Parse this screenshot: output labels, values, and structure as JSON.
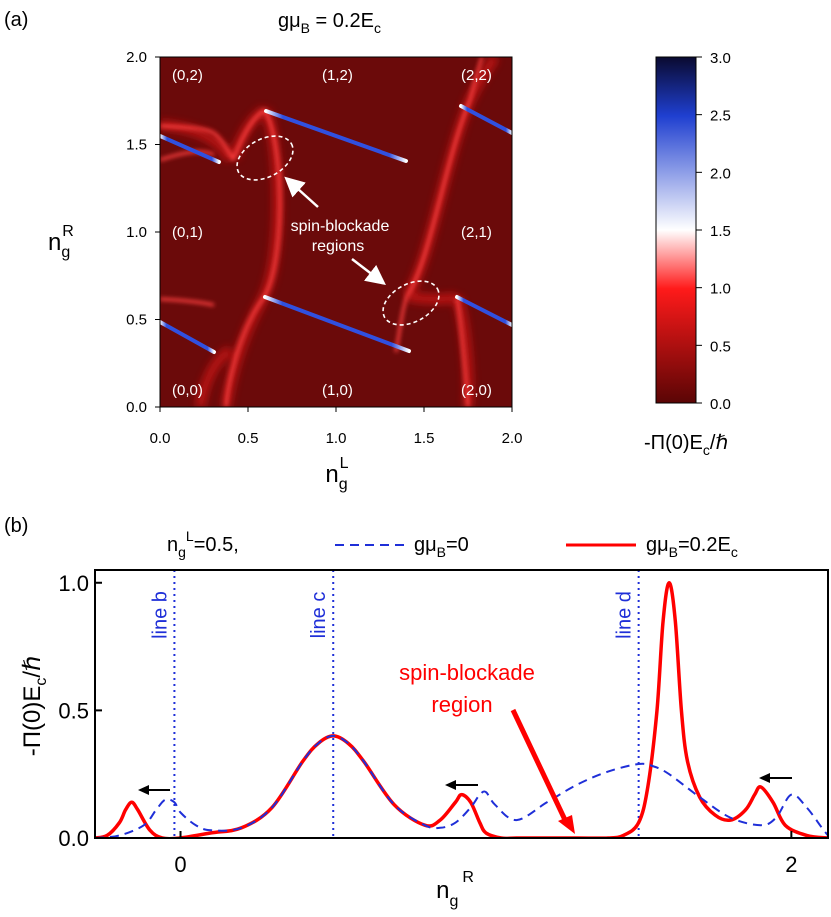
{
  "panel_a": {
    "label": "(a)",
    "title_parts": [
      "gμ",
      "B",
      " = 0.2E",
      "c"
    ],
    "xlabel_main": "n",
    "xlabel_sub": "g",
    "xlabel_sup": "L",
    "ylabel_main": "n",
    "ylabel_sub": "g",
    "ylabel_sup": "R",
    "region_labels": [
      "(0,2)",
      "(1,2)",
      "(2,2)",
      "(0,1)",
      "(2,1)",
      "(0,0)",
      "(1,0)",
      "(2,0)"
    ],
    "annotation_line1": "spin-blockade",
    "annotation_line2": "regions",
    "colorbar_label_parts": [
      "-Π(0)E",
      "c",
      "/ℏ"
    ],
    "colors": {
      "background": "#6b0a0a",
      "ridge": "#ff3030",
      "peak_blue": "#1a2a9a",
      "peak_white": "#ffffff"
    }
  },
  "panel_b": {
    "label": "(b)",
    "legend_cond_parts": [
      "n",
      "g",
      "L",
      "=0.5,"
    ],
    "legend_dashed_parts": [
      "gμ",
      "B",
      "=0"
    ],
    "legend_solid_parts": [
      "gμ",
      "B",
      "=0.2E",
      "c"
    ],
    "ylabel_parts": [
      "-Π(0)E",
      "c",
      "/ℏ"
    ],
    "xlabel_main": "n",
    "xlabel_sub": "g",
    "xlabel_sup": "R",
    "vline_labels": [
      "line b",
      "line c",
      "line d"
    ],
    "annotation_line1": "spin-blockade",
    "annotation_line2": "region",
    "colors": {
      "solid": "#ff0000",
      "dashed": "#1f2fd8",
      "vline": "#1f2fd8",
      "annotation": "#ff0000"
    }
  },
  "chart_data": [
    {
      "type": "heatmap",
      "title": "gμB = 0.2Ec",
      "xlabel": "ngL",
      "ylabel": "ngR",
      "xlim": [
        0,
        2
      ],
      "ylim": [
        0,
        2
      ],
      "xticks": [
        "0.0",
        "0.5",
        "1.0",
        "1.5",
        "2.0"
      ],
      "yticks": [
        "0.0",
        "0.5",
        "1.0",
        "1.5",
        "2.0"
      ],
      "colorbar": {
        "label": "-Π(0)Ec/ℏ",
        "range": [
          0,
          3
        ],
        "ticks": [
          "0.0",
          "0.5",
          "1.0",
          "1.5",
          "2.0",
          "2.5",
          "3.0"
        ],
        "colormap": [
          [
            "0.0",
            "#5a0505"
          ],
          [
            "1.0",
            "#ff1a1a"
          ],
          [
            "1.5",
            "#ffffff"
          ],
          [
            "2.5",
            "#1f3fd0"
          ],
          [
            "3.0",
            "#0a0a30"
          ]
        ]
      },
      "ridges": [
        {
          "x": [
            0.0,
            0.3
          ],
          "y": [
            0.44,
            0.29
          ]
        },
        {
          "x": [
            0.59,
            1.41
          ],
          "y": [
            0.59,
            0.31
          ]
        },
        {
          "x": [
            1.66,
            2.0
          ],
          "y": [
            0.6,
            0.46
          ]
        },
        {
          "x": [
            0.0,
            0.33
          ],
          "y": [
            1.55,
            1.4
          ]
        },
        {
          "x": [
            0.6,
            1.4
          ],
          "y": [
            1.69,
            1.41
          ]
        },
        {
          "x": [
            1.71,
            2.0
          ],
          "y": [
            1.72,
            1.56
          ]
        }
      ]
    },
    {
      "type": "line",
      "xlabel": "ngR",
      "ylabel": "-Π(0)Ec/ℏ",
      "xlim": [
        -0.28,
        2.12
      ],
      "ylim": [
        0,
        1.05
      ],
      "xticks": [
        "0",
        "2"
      ],
      "yticks": [
        "0.0",
        "0.5",
        "1.0"
      ],
      "vlines": [
        {
          "label": "line b",
          "x": -0.02
        },
        {
          "label": "line c",
          "x": 0.5
        },
        {
          "label": "line d",
          "x": 1.5
        }
      ],
      "series": [
        {
          "name": "gμB=0",
          "style": "dashed",
          "x": [
            -0.28,
            -0.2,
            -0.12,
            -0.08,
            -0.05,
            -0.02,
            0.0,
            0.05,
            0.1,
            0.2,
            0.3,
            0.4,
            0.45,
            0.5,
            0.55,
            0.6,
            0.7,
            0.8,
            0.85,
            0.9,
            0.95,
            0.98,
            1.0,
            1.03,
            1.1,
            1.2,
            1.3,
            1.4,
            1.5,
            1.55,
            1.6,
            1.7,
            1.8,
            1.9,
            1.95,
            2.0,
            2.05,
            2.1,
            2.12
          ],
          "y": [
            0.0,
            0.01,
            0.05,
            0.11,
            0.15,
            0.14,
            0.1,
            0.05,
            0.03,
            0.04,
            0.12,
            0.3,
            0.37,
            0.4,
            0.37,
            0.3,
            0.13,
            0.05,
            0.04,
            0.06,
            0.12,
            0.17,
            0.18,
            0.13,
            0.07,
            0.14,
            0.21,
            0.26,
            0.29,
            0.28,
            0.25,
            0.16,
            0.08,
            0.05,
            0.08,
            0.17,
            0.12,
            0.04,
            0.01
          ]
        },
        {
          "name": "gμB=0.2Ec",
          "style": "solid",
          "x": [
            -0.28,
            -0.24,
            -0.2,
            -0.18,
            -0.16,
            -0.14,
            -0.1,
            -0.06,
            0.0,
            0.1,
            0.2,
            0.3,
            0.4,
            0.45,
            0.5,
            0.55,
            0.6,
            0.7,
            0.8,
            0.85,
            0.9,
            0.92,
            0.95,
            0.98,
            1.0,
            1.05,
            1.1,
            1.2,
            1.3,
            1.4,
            1.45,
            1.5,
            1.53,
            1.56,
            1.58,
            1.6,
            1.62,
            1.64,
            1.66,
            1.7,
            1.75,
            1.8,
            1.85,
            1.88,
            1.9,
            1.94,
            1.98,
            2.05,
            2.12
          ],
          "y": [
            0.0,
            0.01,
            0.06,
            0.11,
            0.14,
            0.11,
            0.03,
            0.0,
            0.0,
            0.02,
            0.04,
            0.12,
            0.3,
            0.37,
            0.4,
            0.37,
            0.3,
            0.13,
            0.05,
            0.07,
            0.14,
            0.17,
            0.14,
            0.06,
            0.02,
            0.0,
            0.0,
            0.0,
            0.0,
            0.0,
            0.01,
            0.06,
            0.2,
            0.5,
            0.85,
            1.0,
            0.85,
            0.5,
            0.3,
            0.16,
            0.09,
            0.07,
            0.11,
            0.17,
            0.2,
            0.14,
            0.05,
            0.01,
            0.0
          ]
        }
      ]
    }
  ]
}
